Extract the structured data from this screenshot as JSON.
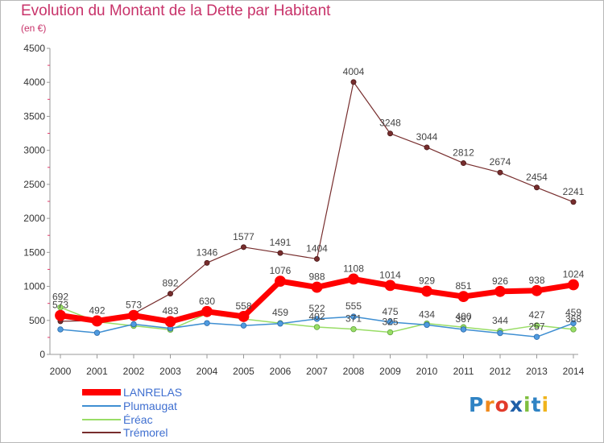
{
  "header": {
    "title": "Evolution du Montant de la Dette par Habitant",
    "subtitle": "(en €)"
  },
  "brand": {
    "letters": [
      "P",
      "r",
      "o",
      "x",
      "i",
      "t",
      "i"
    ],
    "colors": [
      "#2f83c4",
      "#f08a1c",
      "#e23b2b",
      "#1f5fa8",
      "#7fbf3f",
      "#2f83c4",
      "#f0b41c"
    ]
  },
  "chart_data": {
    "type": "line",
    "title": "Evolution du Montant de la Dette par Habitant",
    "subtitle": "(en €)",
    "xlabel": "",
    "ylabel": "",
    "categories": [
      "2000",
      "2001",
      "2002",
      "2003",
      "2004",
      "2005",
      "2006",
      "2007",
      "2008",
      "2009",
      "2010",
      "2011",
      "2012",
      "2013",
      "2014"
    ],
    "ylim": [
      0,
      4500
    ],
    "yticks": [
      "0",
      "500",
      "1000",
      "1500",
      "2000",
      "2500",
      "3000",
      "3500",
      "4000",
      "4500"
    ],
    "grid": false,
    "legend": "bottom-left",
    "series": [
      {
        "name": "LANRELAS",
        "color": "#ff0000",
        "values": [
          573,
          492,
          573,
          483,
          630,
          558,
          1076,
          988,
          1108,
          1014,
          929,
          851,
          926,
          938,
          1024
        ],
        "labels": [
          "573",
          "492",
          "573",
          "483",
          "630",
          "558",
          "1076",
          "988",
          "1108",
          "1014",
          "929",
          "851",
          "926",
          "938",
          "1024"
        ]
      },
      {
        "name": "Plumaugat",
        "color": "#3f8fd2",
        "values": [
          367,
          317,
          444,
          383,
          460,
          424,
          453,
          522,
          555,
          475,
          434,
          367,
          313,
          257,
          459
        ],
        "labels": [
          "",
          "",
          "",
          "",
          "",
          "",
          "",
          "522",
          "555",
          "475",
          "434",
          "367",
          "",
          "257",
          "459"
        ]
      },
      {
        "name": "Éréac",
        "color": "#99dd66",
        "values": [
          692,
          479,
          420,
          363,
          599,
          521,
          459,
          402,
          371,
          325,
          454,
          400,
          344,
          427,
          368
        ],
        "labels": [
          "692",
          "",
          "",
          "",
          "",
          "",
          "459",
          "402",
          "371",
          "325",
          "",
          "400",
          "344",
          "427",
          "368"
        ]
      },
      {
        "name": "Trémorel",
        "color": "#772d2d",
        "values": [
          487,
          497,
          599,
          892,
          1346,
          1577,
          1491,
          1404,
          4004,
          3248,
          3044,
          2812,
          2674,
          2454,
          2241
        ],
        "labels": [
          "",
          "",
          "",
          "892",
          "1346",
          "1577",
          "1491",
          "1404",
          "4004",
          "3248",
          "3044",
          "2812",
          "2674",
          "2454",
          "2241"
        ]
      }
    ]
  }
}
